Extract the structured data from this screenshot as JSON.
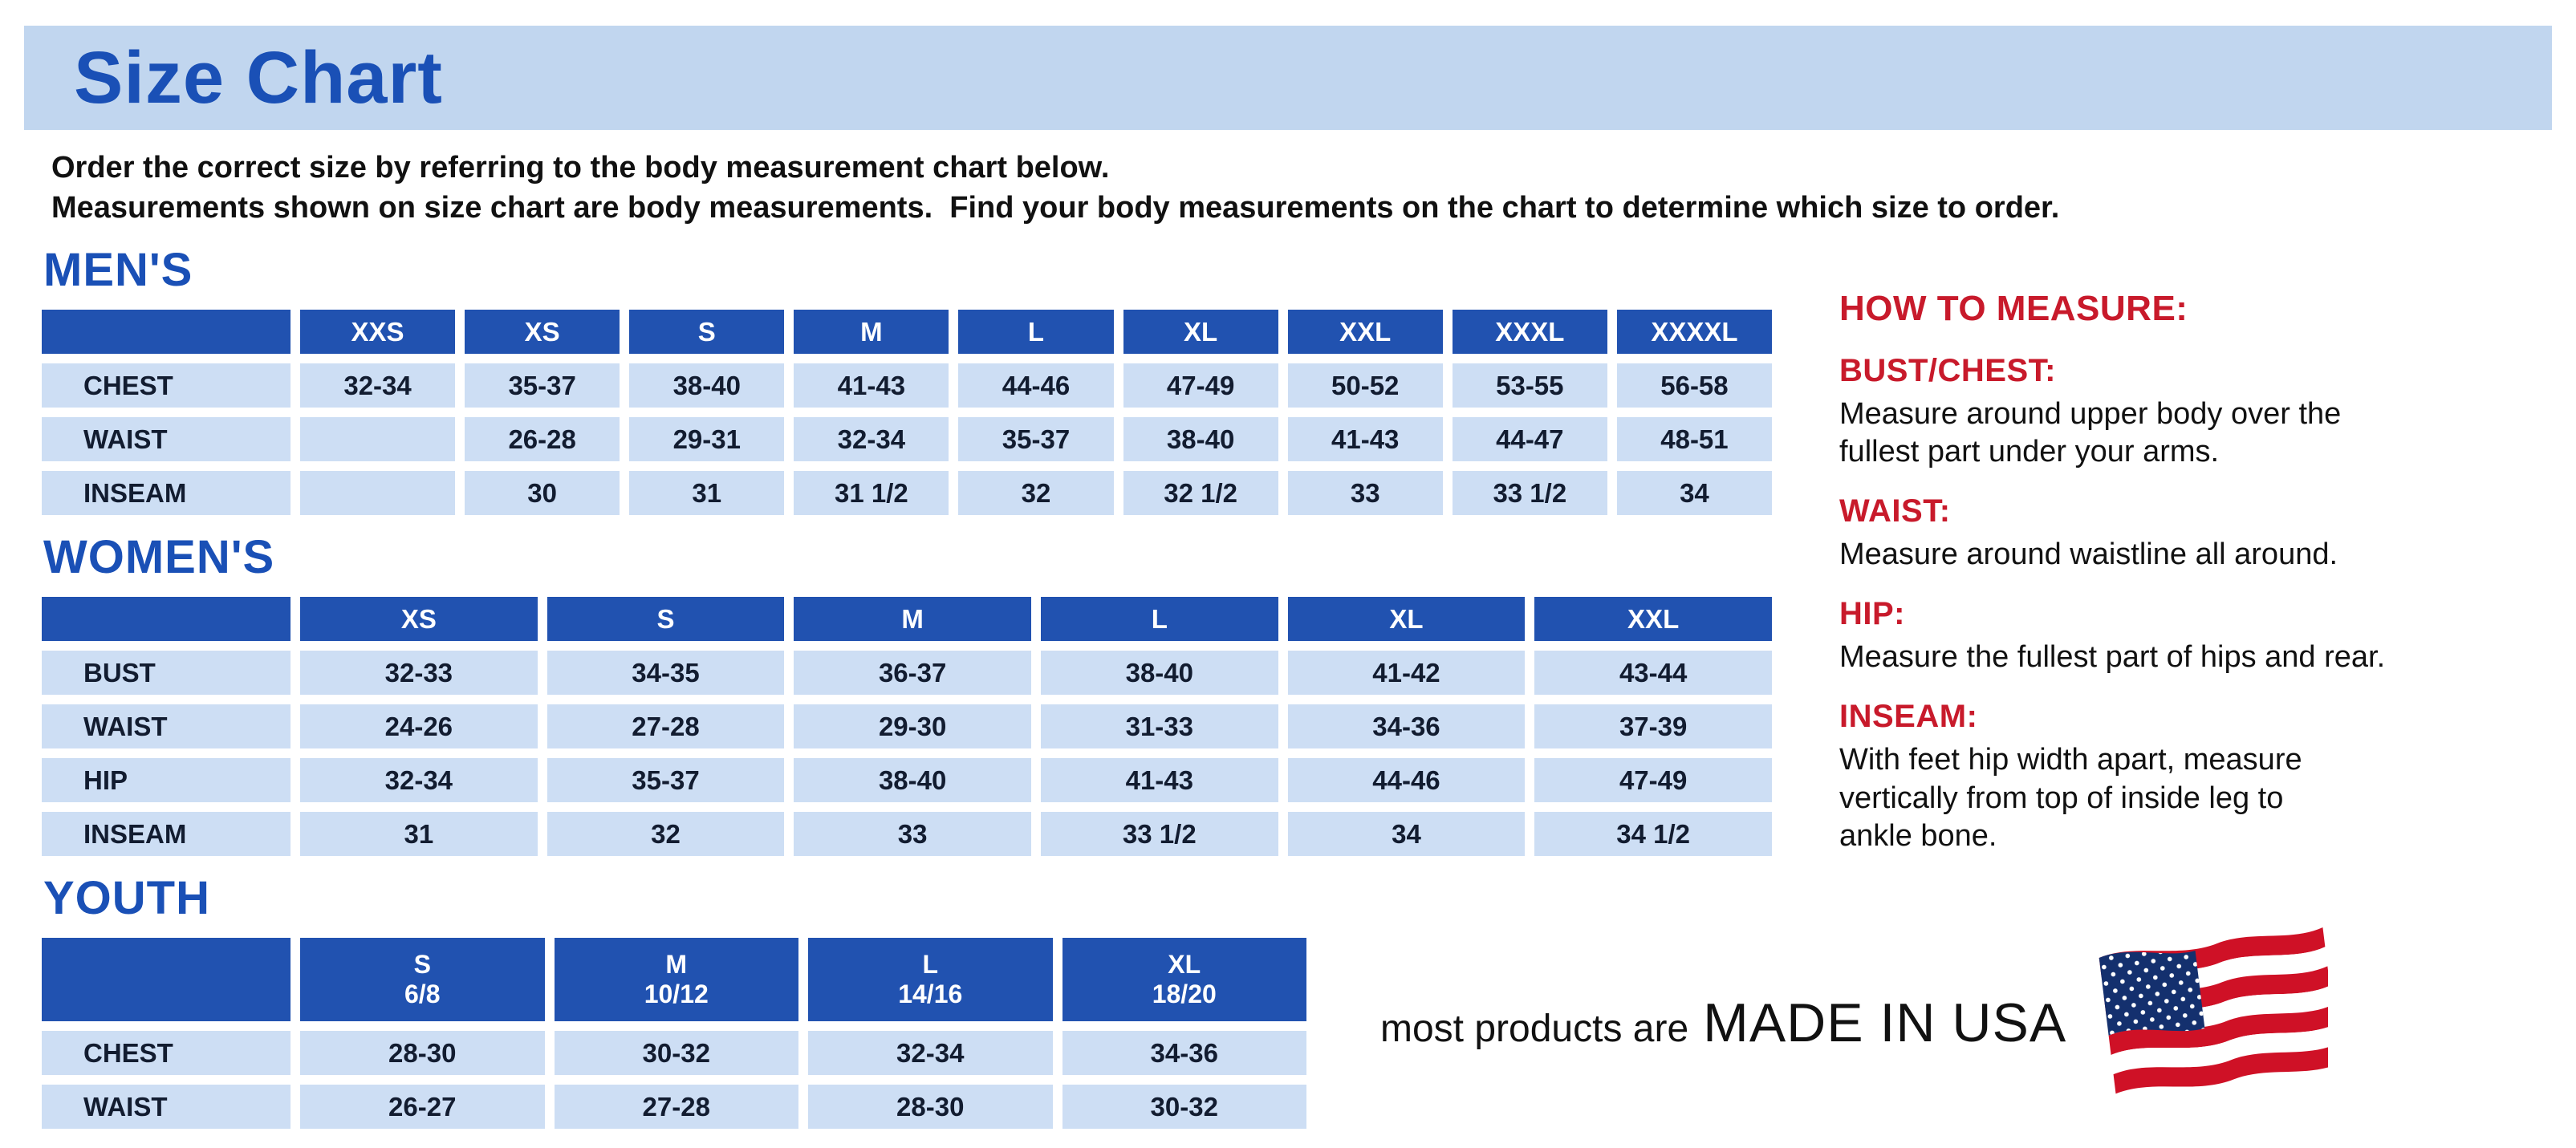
{
  "page": {
    "title": "Size Chart",
    "intro_line1": "Order the correct size by referring to the body measurement chart below.",
    "intro_line2": "Measurements shown on size chart are body measurements.  Find your body measurements on the chart to determine which size to order."
  },
  "colors": {
    "title_blue": "#1a50b6",
    "table_header_blue": "#2152b0",
    "table_cell_blue": "#cddef4",
    "banner_blue": "#c1d6ef",
    "accent_red": "#c81a2b",
    "cell_text": "#121c30"
  },
  "tables": [
    {
      "id": "mens",
      "section_label": "MEN'S",
      "columns": [
        "",
        "XXS",
        "XS",
        "S",
        "M",
        "L",
        "XL",
        "XXL",
        "XXXL",
        "XXXXL"
      ],
      "rows": [
        {
          "label": "CHEST",
          "values": [
            "32-34",
            "35-37",
            "38-40",
            "41-43",
            "44-46",
            "47-49",
            "50-52",
            "53-55",
            "56-58"
          ]
        },
        {
          "label": "WAIST",
          "values": [
            "",
            "26-28",
            "29-31",
            "32-34",
            "35-37",
            "38-40",
            "41-43",
            "44-47",
            "48-51"
          ]
        },
        {
          "label": "INSEAM",
          "values": [
            "",
            "30",
            "31",
            "31 1/2",
            "32",
            "32 1/2",
            "33",
            "33 1/2",
            "34"
          ]
        }
      ]
    },
    {
      "id": "womens",
      "section_label": "WOMEN'S",
      "columns": [
        "",
        "XS",
        "S",
        "M",
        "L",
        "XL",
        "XXL"
      ],
      "rows": [
        {
          "label": "BUST",
          "values": [
            "32-33",
            "34-35",
            "36-37",
            "38-40",
            "41-42",
            "43-44"
          ]
        },
        {
          "label": "WAIST",
          "values": [
            "24-26",
            "27-28",
            "29-30",
            "31-33",
            "34-36",
            "37-39"
          ]
        },
        {
          "label": "HIP",
          "values": [
            "32-34",
            "35-37",
            "38-40",
            "41-43",
            "44-46",
            "47-49"
          ]
        },
        {
          "label": "INSEAM",
          "values": [
            "31",
            "32",
            "33",
            "33 1/2",
            "34",
            "34 1/2"
          ]
        }
      ]
    },
    {
      "id": "youth",
      "section_label": "YOUTH",
      "columns": [
        "",
        "S\n6/8",
        "M\n10/12",
        "L\n14/16",
        "XL\n18/20"
      ],
      "rows": [
        {
          "label": "CHEST",
          "values": [
            "28-30",
            "30-32",
            "32-34",
            "34-36"
          ]
        },
        {
          "label": "WAIST",
          "values": [
            "26-27",
            "27-28",
            "28-30",
            "30-32"
          ]
        }
      ]
    }
  ],
  "how_to_measure": {
    "title": "HOW TO MEASURE:",
    "items": [
      {
        "heading": "BUST/CHEST:",
        "text": "Measure around upper body over the\nfullest part under your arms."
      },
      {
        "heading": "WAIST:",
        "text": "Measure around waistline all around."
      },
      {
        "heading": "HIP:",
        "text": "Measure the fullest part of hips and rear."
      },
      {
        "heading": "INSEAM:",
        "text": "With feet hip width apart, measure\nvertically from top of inside leg to\nankle bone."
      }
    ]
  },
  "footer": {
    "made_prefix": "most products are",
    "made_emphasis": "MADE IN USA",
    "flag_icon": "us-flag-icon"
  }
}
